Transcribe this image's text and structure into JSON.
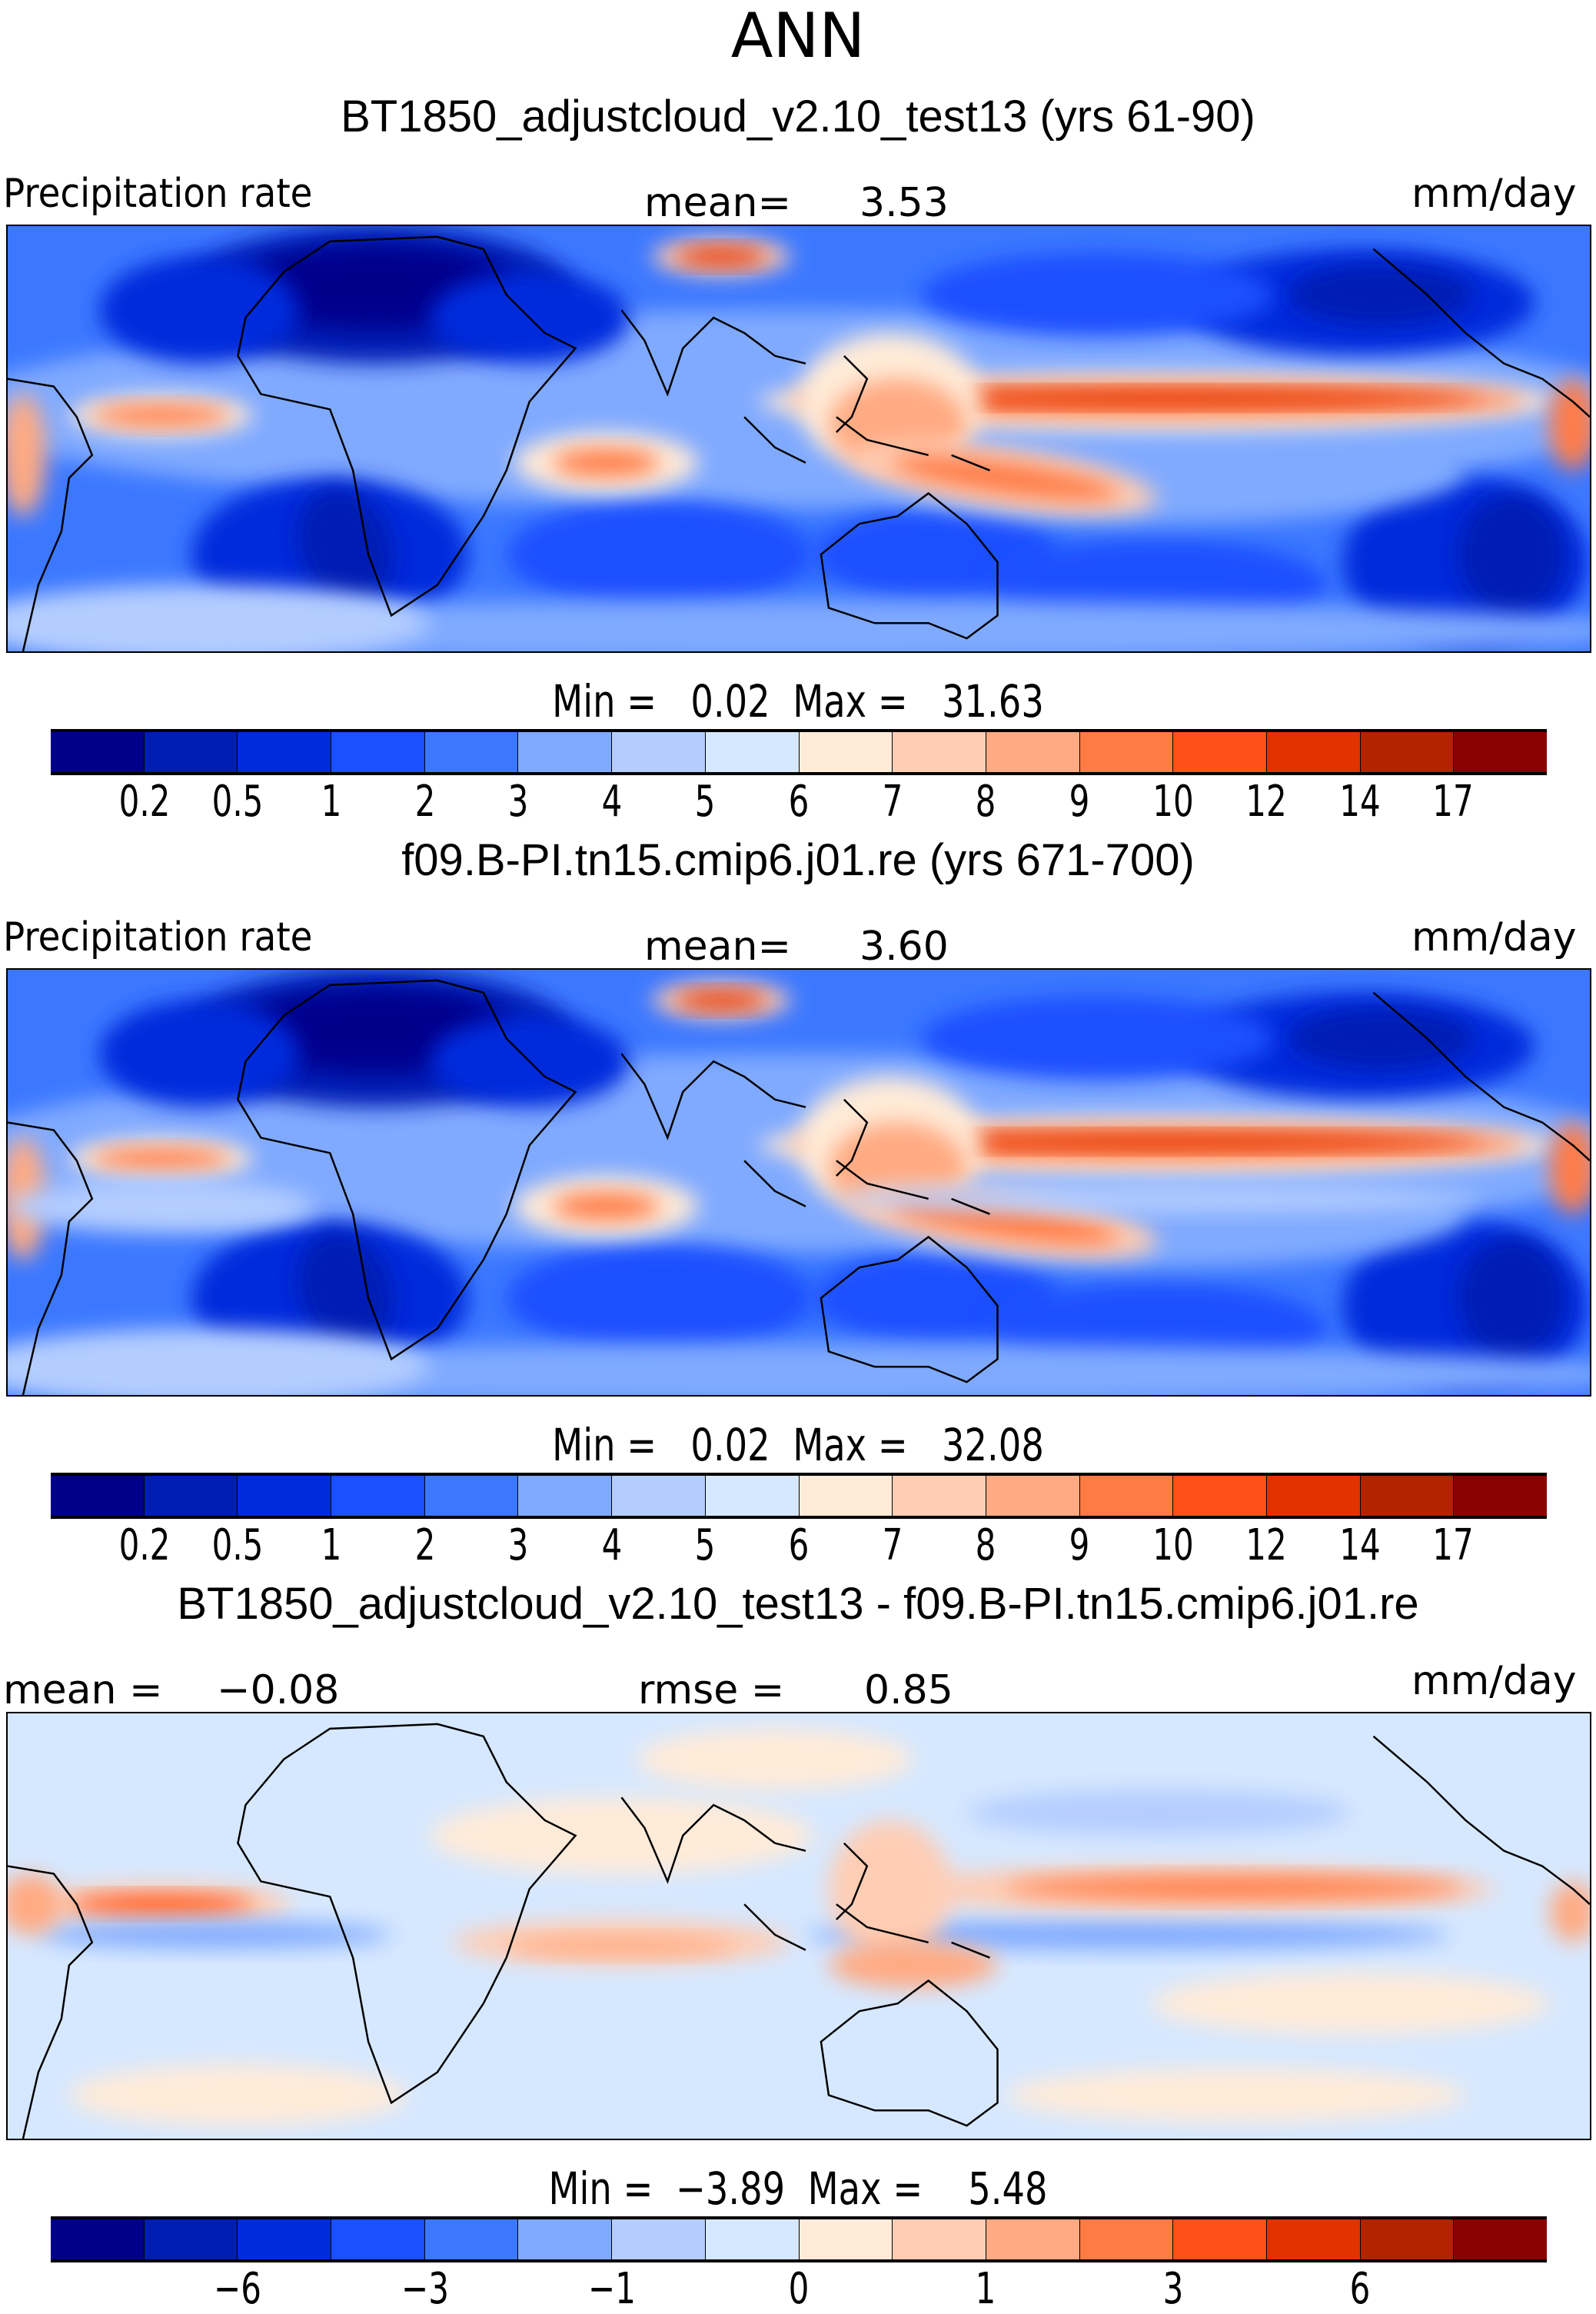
{
  "season": "ANN",
  "colors": [
    "#00008b",
    "#001eb4",
    "#002bdc",
    "#1a50ff",
    "#3c78ff",
    "#80aaff",
    "#b4cdff",
    "#d6e8ff",
    "#ffebd8",
    "#ffcdb4",
    "#ffaa82",
    "#ff7b46",
    "#ff5019",
    "#e13200",
    "#b42300",
    "#8b0000"
  ],
  "chart_data": [
    {
      "type": "heatmap",
      "title": "BT1850_adjustcloud_v2.10_test13 (yrs 61-90)",
      "left_label": "Precipitation  rate",
      "center_label": "mean=",
      "center_value": "3.53",
      "units": "mm/day",
      "min_label": "Min  =",
      "min_value": "0.02",
      "max_label": "Max  =",
      "max_value": "31.63",
      "levels": [
        "0.2",
        "0.5",
        "1",
        "2",
        "3",
        "4",
        "5",
        "6",
        "7",
        "8",
        "9",
        "10",
        "12",
        "14",
        "17"
      ]
    },
    {
      "type": "heatmap",
      "title": "f09.B-PI.tn15.cmip6.j01.re (yrs 671-700)",
      "left_label": "Precipitation  rate",
      "center_label": "mean=",
      "center_value": "3.60",
      "units": "mm/day",
      "min_label": "Min  =",
      "min_value": "0.02",
      "max_label": "Max  =",
      "max_value": "32.08",
      "levels": [
        "0.2",
        "0.5",
        "1",
        "2",
        "3",
        "4",
        "5",
        "6",
        "7",
        "8",
        "9",
        "10",
        "12",
        "14",
        "17"
      ]
    },
    {
      "type": "heatmap",
      "title": "BT1850_adjustcloud_v2.10_test13 - f09.B-PI.tn15.cmip6.j01.re",
      "left_label": "mean  =",
      "left_value": "−0.08",
      "center_label": "rmse  =",
      "center_value": "0.85",
      "units": "mm/day",
      "min_label": "Min  =",
      "min_value": "−3.89",
      "max_label": "Max  =",
      "max_value": "5.48",
      "levels": [
        "−6",
        "−3",
        "−1",
        "0",
        "1",
        "3",
        "6"
      ]
    }
  ]
}
